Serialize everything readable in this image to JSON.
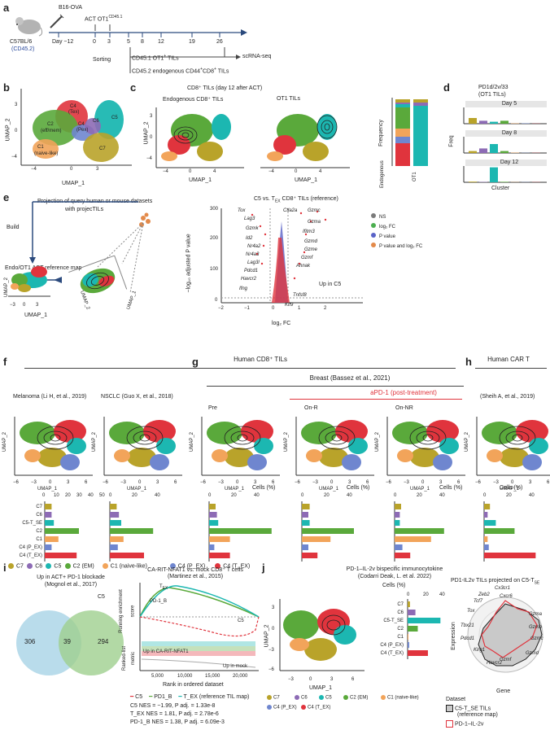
{
  "colors": {
    "C7": "#b9a32a",
    "C6": "#8d6bb5",
    "C5": "#1cb7b1",
    "C2": "#5aa93b",
    "C1": "#f2a45a",
    "C4_PEX": "#6f86cf",
    "C4_TEX": "#e0343d",
    "axisblue": "#2b4a7d",
    "mouse": "#9e9e9e",
    "red": "#e03030",
    "vennBlue": "#a7d3e6",
    "vennGreen": "#9fcf8e"
  },
  "panel_letters": {
    "a": "a",
    "b": "b",
    "c": "c",
    "d": "d",
    "e": "e",
    "f": "f",
    "g": "g",
    "h": "h",
    "i": "i",
    "j": "j"
  },
  "panel_a": {
    "mouse_strain": "C57BL/6",
    "mouse_cd": "(CD45.2)",
    "b16": "B16-OVA",
    "act": "ACT OT1",
    "act_sup": "CD45.1",
    "day_label": "Day −12",
    "ticks": [
      "0",
      "3",
      "5",
      "8",
      "12",
      "19",
      "26"
    ],
    "sorting": "Sorting",
    "line1_pre": "CD45.1 OT1",
    "line1_sup": "+",
    "line1_post": " TILs",
    "line2": "CD45.2 endogenous CD44",
    "line2_sup": "+",
    "line2_mid": "CD8",
    "line2_sup2": "+",
    "line2_post": " TILs",
    "scrna": "scRNA-seq"
  },
  "panel_b": {
    "ylabel": "UMAP_2",
    "xlabel": "UMAP_1",
    "xticks": [
      "−4",
      "0",
      "3"
    ],
    "yticks": [
      "3",
      "0",
      "−4"
    ],
    "clusters": [
      "C4",
      "(Tex)",
      "C2",
      "(eff/mem)",
      "C4",
      "(Pex)",
      "C5",
      "C6",
      "C1",
      "(naive-like)",
      "C7"
    ]
  },
  "panel_c": {
    "title": "CD8⁺ TILs  (day 12 after ACT)",
    "sub1": "Endogenous CD8⁺ TILs",
    "sub2": "OT1 TILs",
    "ylabel": "UMAP_2",
    "xlabel": "UMAP_1",
    "xticks": [
      "−4",
      "0",
      "4"
    ],
    "yticks": [
      "3",
      "0",
      "−4"
    ],
    "freq_label": "Frequency",
    "bar_labels": [
      "Endogenous",
      "OT1"
    ],
    "yticks_freq": [
      "1.00",
      "0.75",
      "0.50",
      "0.25",
      "0"
    ]
  },
  "panel_d": {
    "title1": "PD1d/2v/33",
    "title2": "(OT1 TILs)",
    "days": [
      "Day 5",
      "Day 8",
      "Day 12"
    ],
    "ylabel": "Freq",
    "xlabel": "Cluster",
    "yticks": [
      "0.6",
      "0.4",
      "0.2",
      "0.0"
    ],
    "day5": [
      0.35,
      0.18,
      0.12,
      0.18,
      0.02,
      0.02,
      0.01
    ],
    "day8": [
      0.12,
      0.28,
      0.55,
      0.12,
      0.02,
      0.01,
      0.01
    ],
    "day12": [
      0.04,
      0.02,
      0.92,
      0.03,
      0.01,
      0.01,
      0.01
    ]
  },
  "panel_e": {
    "projection": "Projection of query human or mouse datasets",
    "with": "with projecTILs",
    "build": "Build",
    "refmap": "Endo/OT1 ACT reference map",
    "ylabel": "UMAP_2",
    "xlabel": "UMAP_1",
    "xticks": [
      "−3",
      "0",
      "3"
    ],
    "yticks": [
      "3",
      "0",
      "−3"
    ],
    "umap2_rot": "UMAP_2",
    "umap1_rot": "UMAP_1",
    "volcano_title": "C5 vs. T",
    "volcano_title_sub": "EX",
    "volcano_title_post": " CD8⁺ TILs (reference)",
    "v_ylabel": "−log₁₀ adjusted P value",
    "v_xlabel": "log₂ FC",
    "v_xticks": [
      "−2",
      "−1",
      "0",
      "1",
      "2"
    ],
    "v_yticks": [
      "300",
      "200",
      "100",
      "0"
    ],
    "genes_left": [
      "Tox",
      "Lag3",
      "Gzmk",
      "Id2",
      "Nr4a2",
      "Nr4a3",
      "Lag3l",
      "Pdcd1",
      "Havcr2",
      "Ifng"
    ],
    "genes_right": [
      "Ctla2a",
      "Gzmc",
      "Gzma",
      "Ifitm3",
      "Gzmd",
      "Gzme",
      "Gzmf",
      "Ahnak",
      "Tnfsf8",
      "Klf9"
    ],
    "up": "Up in C5",
    "legend": [
      "NS",
      "log₂ FC",
      "P value",
      "P value and log₂ FC"
    ],
    "legend_colors": [
      "#7b7b7b",
      "#4caf50",
      "#5a63c8",
      "#e38a4a"
    ]
  },
  "human_titles": {
    "cd8": "Human CD8⁺ TILs",
    "car": "Human CAR T",
    "breast": "Breast (Bassez et al., 2021)",
    "apd1": "aPD-1 (post-treatment)",
    "melanoma": "Melanoma (Li H, et al., 2019)",
    "nsclc": "NSCLC (Guo X, et al., 2018)",
    "pre": "Pre",
    "onr": "On-R",
    "onnr": "On-NR",
    "sheih": "(Sheih A, et al., 2019)",
    "umap2": "UMAP_2",
    "umap1": "UMAP_1",
    "xticks": [
      "−6",
      "−3",
      "0",
      "3",
      "6"
    ],
    "yticks": [
      "3",
      "0",
      "−3",
      "−6"
    ],
    "cells": "Cells (%)",
    "bar_ticks": [
      "0",
      "10",
      "20",
      "30",
      "40",
      "50"
    ],
    "bar_ticks2": [
      "0",
      "20",
      "40"
    ],
    "categories": [
      "C7",
      "C6",
      "C5-T_SE",
      "C2",
      "C1",
      "C4 (P_EX)",
      "C4 (T_EX)"
    ],
    "legend": [
      "C7",
      "C6",
      "C5",
      "C2 (EM)",
      "C1 (naive-like)",
      "C4 (P_EX)",
      "C4 (T_EX)"
    ]
  },
  "bars_f": [
    [
      6,
      6,
      8,
      30,
      12,
      6,
      28
    ],
    [
      6,
      8,
      10,
      38,
      12,
      7,
      30
    ]
  ],
  "bars_g": [
    [
      5,
      6,
      7,
      48,
      16,
      4,
      16
    ],
    [
      6,
      5,
      6,
      40,
      22,
      5,
      12
    ],
    [
      5,
      4,
      4,
      38,
      28,
      6,
      12
    ]
  ],
  "bars_h": [
    5,
    3,
    10,
    26,
    3,
    4,
    44
  ],
  "panel_i": {
    "venn_title": "Up in ACT+ PD-1 blockade",
    "venn_title2": "(Mognol et al., 2017)",
    "c5": "C5",
    "left": "306",
    "mid": "39",
    "right": "294",
    "gsea_title": "CA-RIT-NFAT1 vs. mock CD8⁺ T cells",
    "gsea_title2": "(Martinez et al., 2015)",
    "ylabel1": "Running enrichment",
    "ylabel1b": "score",
    "ylabel2": "Ranked-list",
    "ylabel2b": "metric",
    "yticks": [
      "0.4",
      "0.2",
      "0",
      "−0.2",
      "−0.4"
    ],
    "xticks": [
      "5,000",
      "10,000",
      "15,000",
      "20,000"
    ],
    "xlabel": "Rank in ordered dataset",
    "up_in": "Up in CA-RIT-NFAT1",
    "up_mock": "Up in mock",
    "lbl_tex": "T",
    "lbl_tex_sub": "EX",
    "lbl_pd1b": "PD-1_B",
    "lbl_c5": "C5",
    "legend": [
      "C5",
      "PD1_B",
      "T_EX (reference TIL map)"
    ],
    "stats": [
      "C5  NES = −1.99, P adj. = 1.33e-8",
      "T_EX  NES = 1.81, P adj. = 2.78e-6",
      "PD-1_B  NES = 1.38, P adj. = 6.09e-3"
    ]
  },
  "panel_j": {
    "title": "PD-1–IL-2v bispecific immunocytokine",
    "title2": "(Codarri Deak, L. et al. 2022)",
    "cells": "Cells (%)",
    "xticks": [
      "0",
      "20",
      "40"
    ],
    "values": [
      3,
      10,
      42,
      13,
      1,
      2,
      26
    ],
    "ylabel": "UMAP_2",
    "xlabel": "UMAP_1",
    "xticks_umap": [
      "−3",
      "0",
      "3",
      "6"
    ],
    "yticks_umap": [
      "3",
      "0",
      "−3",
      "−6"
    ],
    "radar_title": "PD1-IL2v TILs projected on C5-T",
    "radar_title_sub": "SE",
    "radar_genes": [
      "Cx3cr1",
      "Cxcr6",
      "Gzma",
      "Gzmb",
      "Gzmc",
      "Gzmd",
      "Gzmf",
      "Havcr2",
      "Klrg1",
      "Pdcd1",
      "Tbx21",
      "Tox",
      "Tcf7",
      "Zeb2"
    ],
    "expression": "Expression",
    "gene": "Gene",
    "dataset": "Dataset",
    "ds1": "C5-T_SE TILs",
    "ds1b": "(reference map)",
    "ds2": "PD-1–IL-2v"
  }
}
